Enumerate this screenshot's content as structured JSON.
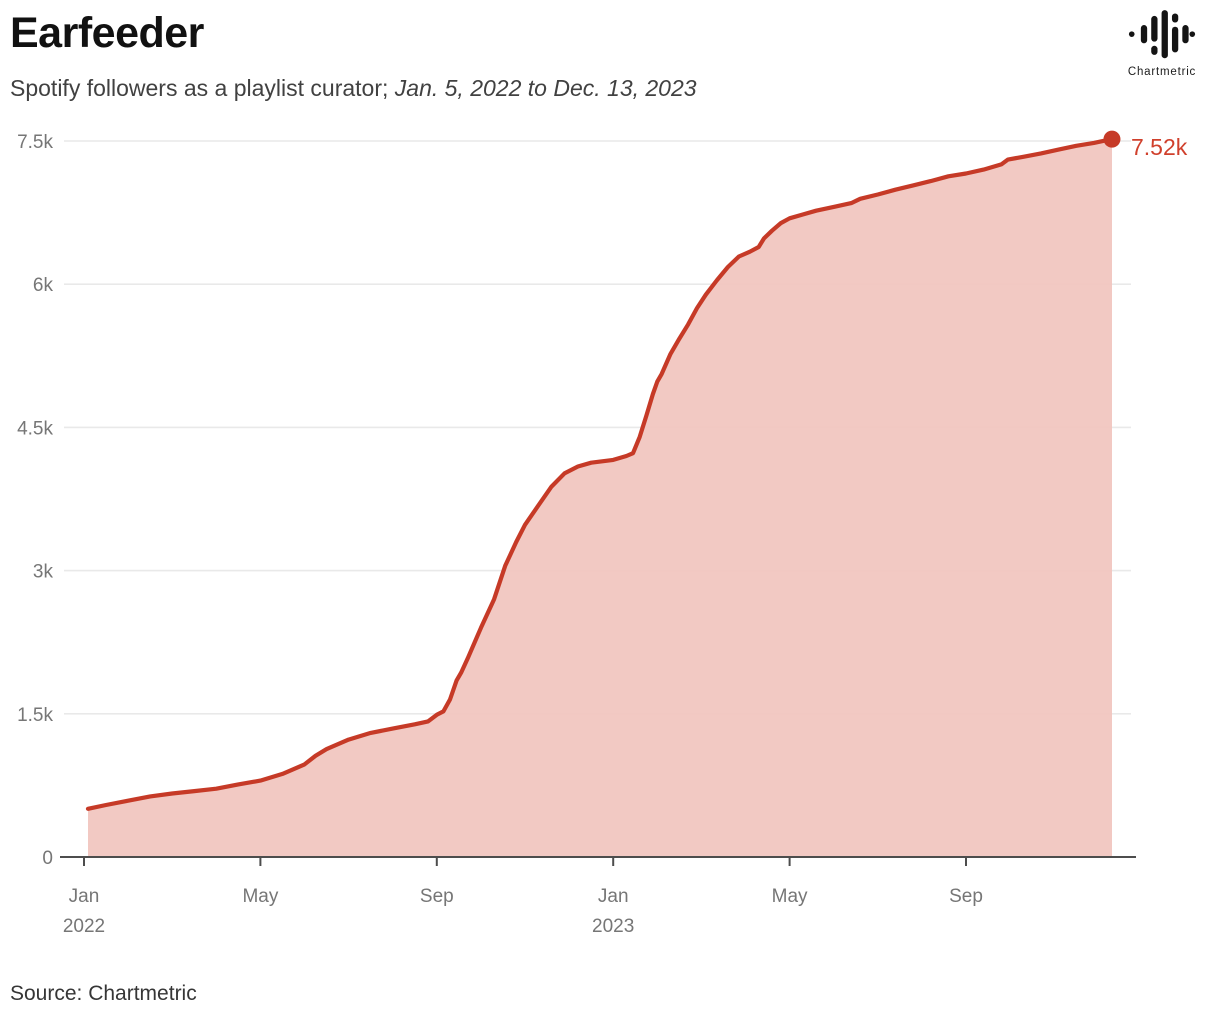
{
  "header": {
    "title": "Earfeeder",
    "subtitle_plain": "Spotify followers as a playlist curator; ",
    "subtitle_italic": "Jan. 5, 2022 to Dec. 13, 2023"
  },
  "branding": {
    "logo_icon": "chartmetric-waveform-icon",
    "logo_label": "Chartmetric"
  },
  "footer": {
    "source": "Source: Chartmetric"
  },
  "chart_data": {
    "type": "area",
    "title": "Earfeeder",
    "subtitle": "Spotify followers as a playlist curator; Jan. 5, 2022 to Dec. 13, 2023",
    "x_unit": "months since Jan 2022",
    "xlim": [
      0,
      23.31
    ],
    "ylim": [
      0,
      7860
    ],
    "grid": "horizontal-only",
    "legend": "none",
    "end_label": "7.52k",
    "colors": {
      "line": "#c63a27",
      "fill": "rgba(241,197,190,0.93)",
      "dot": "#c63a27",
      "end_label": "#d0402c",
      "grid": "#e9e9e9",
      "axis": "#4d4d4d",
      "tick_text": "#767676"
    },
    "x_ticks": [
      {
        "m": 0,
        "line1": "Jan",
        "line2": "2022"
      },
      {
        "m": 4,
        "line1": "May",
        "line2": ""
      },
      {
        "m": 8,
        "line1": "Sep",
        "line2": ""
      },
      {
        "m": 12,
        "line1": "Jan",
        "line2": "2023"
      },
      {
        "m": 16,
        "line1": "May",
        "line2": ""
      },
      {
        "m": 20,
        "line1": "Sep",
        "line2": ""
      }
    ],
    "y_ticks": [
      {
        "v": 0,
        "label": "0"
      },
      {
        "v": 1500,
        "label": "1.5k"
      },
      {
        "v": 3000,
        "label": "3k"
      },
      {
        "v": 4500,
        "label": "4.5k"
      },
      {
        "v": 6000,
        "label": "6k"
      },
      {
        "v": 7500,
        "label": "7.5k"
      }
    ],
    "series": [
      {
        "name": "Spotify followers",
        "points": [
          [
            0.09,
            505
          ],
          [
            0.5,
            545
          ],
          [
            1.0,
            590
          ],
          [
            1.5,
            635
          ],
          [
            2.0,
            665
          ],
          [
            2.5,
            690
          ],
          [
            3.0,
            715
          ],
          [
            3.5,
            760
          ],
          [
            4.0,
            800
          ],
          [
            4.5,
            870
          ],
          [
            5.0,
            970
          ],
          [
            5.25,
            1060
          ],
          [
            5.5,
            1130
          ],
          [
            6.0,
            1230
          ],
          [
            6.5,
            1300
          ],
          [
            7.0,
            1345
          ],
          [
            7.5,
            1390
          ],
          [
            7.8,
            1420
          ],
          [
            8.0,
            1490
          ],
          [
            8.15,
            1525
          ],
          [
            8.3,
            1650
          ],
          [
            8.45,
            1850
          ],
          [
            8.55,
            1930
          ],
          [
            8.7,
            2080
          ],
          [
            9.0,
            2400
          ],
          [
            9.3,
            2700
          ],
          [
            9.55,
            3050
          ],
          [
            9.8,
            3300
          ],
          [
            10.0,
            3480
          ],
          [
            10.3,
            3680
          ],
          [
            10.6,
            3880
          ],
          [
            10.9,
            4020
          ],
          [
            11.2,
            4090
          ],
          [
            11.5,
            4130
          ],
          [
            12.0,
            4160
          ],
          [
            12.3,
            4200
          ],
          [
            12.45,
            4230
          ],
          [
            12.6,
            4400
          ],
          [
            12.75,
            4620
          ],
          [
            12.9,
            4850
          ],
          [
            13.0,
            4980
          ],
          [
            13.1,
            5060
          ],
          [
            13.3,
            5270
          ],
          [
            13.5,
            5430
          ],
          [
            13.7,
            5580
          ],
          [
            13.9,
            5750
          ],
          [
            14.1,
            5890
          ],
          [
            14.35,
            6040
          ],
          [
            14.6,
            6180
          ],
          [
            14.85,
            6290
          ],
          [
            15.1,
            6340
          ],
          [
            15.3,
            6390
          ],
          [
            15.42,
            6480
          ],
          [
            15.6,
            6560
          ],
          [
            15.8,
            6640
          ],
          [
            16.0,
            6690
          ],
          [
            16.3,
            6730
          ],
          [
            16.6,
            6770
          ],
          [
            17.0,
            6810
          ],
          [
            17.4,
            6850
          ],
          [
            17.6,
            6895
          ],
          [
            18.0,
            6940
          ],
          [
            18.4,
            6990
          ],
          [
            18.8,
            7035
          ],
          [
            19.2,
            7080
          ],
          [
            19.6,
            7130
          ],
          [
            20.0,
            7160
          ],
          [
            20.4,
            7200
          ],
          [
            20.8,
            7255
          ],
          [
            20.95,
            7305
          ],
          [
            21.3,
            7335
          ],
          [
            21.7,
            7370
          ],
          [
            22.1,
            7410
          ],
          [
            22.5,
            7450
          ],
          [
            22.9,
            7480
          ],
          [
            23.31,
            7520
          ]
        ]
      }
    ],
    "end_point": {
      "m": 23.31,
      "v": 7520
    }
  }
}
